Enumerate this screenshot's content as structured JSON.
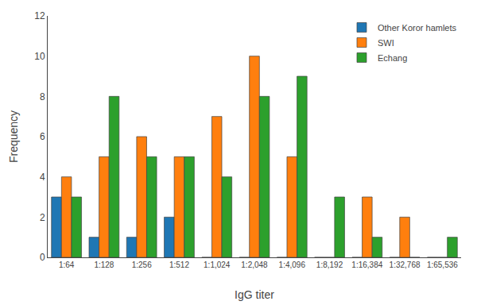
{
  "chart_data": {
    "type": "bar",
    "xlabel": "IgG titer",
    "ylabel": "Frequency",
    "categories": [
      "1:64",
      "1:128",
      "1:256",
      "1:512",
      "1:1,024",
      "1:2,048",
      "1:4,096",
      "1:8,192",
      "1:16,384",
      "1:32,768",
      "1:65,536"
    ],
    "series": [
      {
        "name": "Other Koror hamlets",
        "values": [
          3,
          1,
          1,
          2,
          0,
          0,
          0,
          0,
          0,
          0,
          0
        ]
      },
      {
        "name": "SWI",
        "values": [
          4,
          5,
          6,
          5,
          7,
          10,
          5,
          0,
          3,
          2,
          0
        ]
      },
      {
        "name": "Echang",
        "values": [
          3,
          8,
          5,
          5,
          4,
          8,
          9,
          3,
          1,
          0,
          1
        ]
      }
    ],
    "ylim": [
      0,
      12
    ],
    "yticks": [
      0,
      2,
      4,
      6,
      8,
      10,
      12
    ],
    "grid": false,
    "legend": "upper right"
  }
}
